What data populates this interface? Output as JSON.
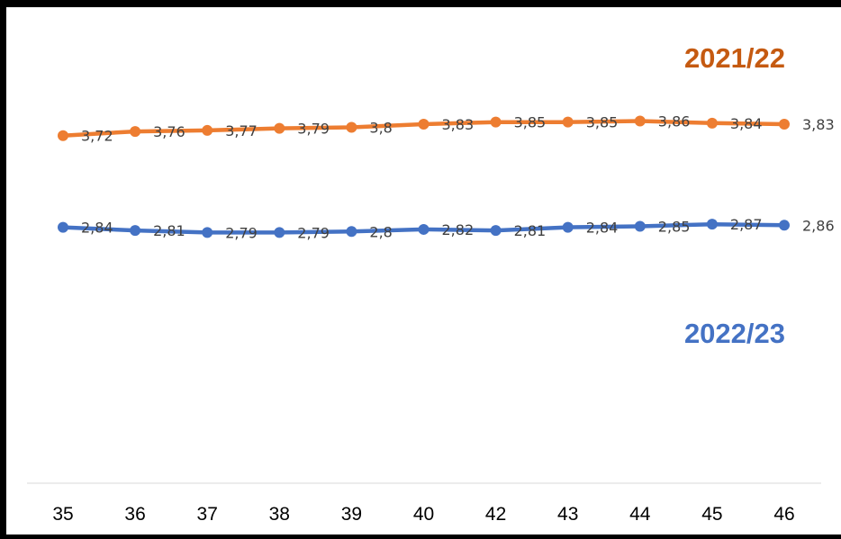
{
  "chart_data": {
    "type": "line",
    "categories": [
      "35",
      "36",
      "37",
      "38",
      "39",
      "40",
      "42",
      "43",
      "44",
      "45",
      "46"
    ],
    "series": [
      {
        "name": "2021/22",
        "color": "#ED7D31",
        "title_color": "#C55A11",
        "values": [
          3.72,
          3.76,
          3.77,
          3.79,
          3.8,
          3.83,
          3.85,
          3.85,
          3.86,
          3.84,
          3.83
        ],
        "labels": [
          "3,72",
          "3,76",
          "3,77",
          "3,79",
          "3,8",
          "3,83",
          "3,85",
          "3,85",
          "3,86",
          "3,84",
          "3,83"
        ]
      },
      {
        "name": "2022/23",
        "color": "#4472C4",
        "title_color": "#4472C4",
        "values": [
          2.84,
          2.81,
          2.79,
          2.79,
          2.8,
          2.82,
          2.81,
          2.84,
          2.85,
          2.87,
          2.86
        ],
        "labels": [
          "2,84",
          "2,81",
          "2,79",
          "2,79",
          "2,8",
          "2,82",
          "2,81",
          "2,84",
          "2,85",
          "2,87",
          "2,86"
        ]
      }
    ],
    "title": "",
    "xlabel": "",
    "ylabel": "",
    "grid": false,
    "legend": "series names above line ends"
  }
}
